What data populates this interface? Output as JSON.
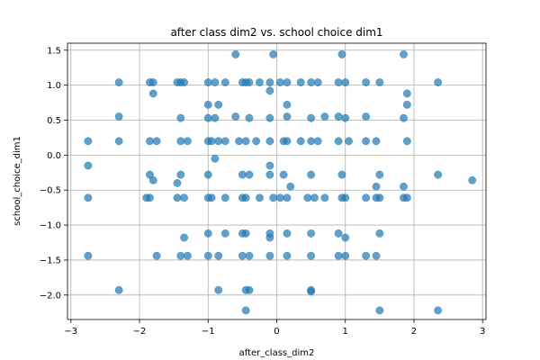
{
  "chart_data": {
    "type": "scatter",
    "title": "after class dim2 vs. school choice dim1",
    "xlabel": "after_class_dim2",
    "ylabel": "school_choice_dim1",
    "xlim": [
      -3.05,
      3.05
    ],
    "ylim": [
      -2.35,
      1.6
    ],
    "xticks": [
      -3,
      -2,
      -1,
      0,
      1,
      2,
      3
    ],
    "yticks": [
      -2.0,
      -1.5,
      -1.0,
      -0.5,
      0.0,
      0.5,
      1.0,
      1.5
    ],
    "xtick_labels": [
      "−3",
      "−2",
      "−1",
      "0",
      "1",
      "2",
      "3"
    ],
    "ytick_labels": [
      "−2.0",
      "−1.5",
      "−1.0",
      "−0.5",
      "0.0",
      "0.5",
      "1.0",
      "1.5"
    ],
    "grid": true,
    "marker_color": "#1f77b4",
    "marker_alpha": 0.7,
    "series": [
      {
        "points": [
          [
            -2.3,
            1.04
          ],
          [
            -1.85,
            1.04
          ],
          [
            -1.8,
            1.04
          ],
          [
            -1.45,
            1.04
          ],
          [
            -1.4,
            1.04
          ],
          [
            -1.35,
            1.04
          ],
          [
            -1.0,
            1.04
          ],
          [
            -0.9,
            1.04
          ],
          [
            -0.75,
            1.04
          ],
          [
            -0.5,
            1.04
          ],
          [
            -0.45,
            1.04
          ],
          [
            -0.4,
            1.04
          ],
          [
            -0.25,
            1.04
          ],
          [
            -0.1,
            1.04
          ],
          [
            0.05,
            1.04
          ],
          [
            0.15,
            1.04
          ],
          [
            0.35,
            1.04
          ],
          [
            0.5,
            1.04
          ],
          [
            0.6,
            1.04
          ],
          [
            0.9,
            1.04
          ],
          [
            1.0,
            1.04
          ],
          [
            1.3,
            1.04
          ],
          [
            1.5,
            1.04
          ],
          [
            2.35,
            1.04
          ],
          [
            -1.8,
            0.88
          ],
          [
            -0.1,
            0.92
          ],
          [
            1.9,
            0.88
          ],
          [
            -1.0,
            0.72
          ],
          [
            -0.85,
            0.72
          ],
          [
            0.15,
            0.72
          ],
          [
            1.9,
            0.72
          ],
          [
            -2.3,
            0.55
          ],
          [
            -1.4,
            0.53
          ],
          [
            -1.0,
            0.53
          ],
          [
            -0.9,
            0.53
          ],
          [
            -0.6,
            0.55
          ],
          [
            -0.4,
            0.53
          ],
          [
            -0.1,
            0.53
          ],
          [
            0.15,
            0.55
          ],
          [
            0.5,
            0.53
          ],
          [
            0.7,
            0.55
          ],
          [
            0.9,
            0.55
          ],
          [
            1.0,
            0.53
          ],
          [
            1.3,
            0.55
          ],
          [
            1.85,
            0.53
          ],
          [
            -2.75,
            0.2
          ],
          [
            -2.3,
            0.2
          ],
          [
            -1.85,
            0.2
          ],
          [
            -1.75,
            0.2
          ],
          [
            -1.4,
            0.2
          ],
          [
            -1.3,
            0.2
          ],
          [
            -1.0,
            0.2
          ],
          [
            -0.95,
            0.2
          ],
          [
            -0.85,
            0.2
          ],
          [
            -0.75,
            0.2
          ],
          [
            -0.55,
            0.2
          ],
          [
            -0.45,
            0.2
          ],
          [
            -0.3,
            0.2
          ],
          [
            -0.1,
            0.2
          ],
          [
            0.1,
            0.2
          ],
          [
            0.15,
            0.2
          ],
          [
            0.35,
            0.2
          ],
          [
            0.5,
            0.2
          ],
          [
            0.6,
            0.2
          ],
          [
            0.9,
            0.2
          ],
          [
            1.05,
            0.2
          ],
          [
            1.3,
            0.2
          ],
          [
            1.45,
            0.2
          ],
          [
            1.9,
            0.2
          ],
          [
            -0.9,
            -0.05
          ],
          [
            -2.75,
            -0.15
          ],
          [
            -0.1,
            -0.15
          ],
          [
            -1.85,
            -0.28
          ],
          [
            -1.4,
            -0.28
          ],
          [
            -1.0,
            -0.28
          ],
          [
            -0.5,
            -0.28
          ],
          [
            -0.4,
            -0.28
          ],
          [
            -0.1,
            -0.28
          ],
          [
            0.1,
            -0.28
          ],
          [
            0.5,
            -0.28
          ],
          [
            0.95,
            -0.28
          ],
          [
            1.5,
            -0.28
          ],
          [
            2.35,
            -0.28
          ],
          [
            -1.8,
            -0.36
          ],
          [
            -1.45,
            -0.4
          ],
          [
            0.2,
            -0.45
          ],
          [
            1.45,
            -0.45
          ],
          [
            1.85,
            -0.45
          ],
          [
            2.85,
            -0.36
          ],
          [
            -2.75,
            -0.61
          ],
          [
            -1.9,
            -0.61
          ],
          [
            -1.85,
            -0.61
          ],
          [
            -1.45,
            -0.61
          ],
          [
            -1.35,
            -0.61
          ],
          [
            -1.0,
            -0.61
          ],
          [
            -0.95,
            -0.61
          ],
          [
            -0.75,
            -0.61
          ],
          [
            -0.5,
            -0.61
          ],
          [
            -0.45,
            -0.61
          ],
          [
            -0.25,
            -0.61
          ],
          [
            -0.05,
            -0.61
          ],
          [
            0.05,
            -0.61
          ],
          [
            0.15,
            -0.61
          ],
          [
            0.45,
            -0.61
          ],
          [
            0.55,
            -0.61
          ],
          [
            0.7,
            -0.61
          ],
          [
            0.95,
            -0.61
          ],
          [
            1.0,
            -0.61
          ],
          [
            1.3,
            -0.61
          ],
          [
            1.45,
            -0.61
          ],
          [
            1.5,
            -0.61
          ],
          [
            1.85,
            -0.61
          ],
          [
            1.9,
            -0.61
          ],
          [
            -1.0,
            -1.12
          ],
          [
            -0.75,
            -1.12
          ],
          [
            -0.5,
            -1.12
          ],
          [
            -0.45,
            -1.12
          ],
          [
            -0.1,
            -1.12
          ],
          [
            0.15,
            -1.12
          ],
          [
            0.5,
            -1.12
          ],
          [
            0.9,
            -1.12
          ],
          [
            1.5,
            -1.12
          ],
          [
            -1.35,
            -1.18
          ],
          [
            -0.1,
            -1.18
          ],
          [
            1.0,
            -1.18
          ],
          [
            -2.75,
            -1.44
          ],
          [
            -1.75,
            -1.44
          ],
          [
            -1.4,
            -1.44
          ],
          [
            -1.3,
            -1.44
          ],
          [
            -1.0,
            -1.44
          ],
          [
            -0.85,
            -1.44
          ],
          [
            -0.5,
            -1.44
          ],
          [
            -0.4,
            -1.44
          ],
          [
            -0.1,
            -1.44
          ],
          [
            0.15,
            -1.44
          ],
          [
            0.5,
            -1.44
          ],
          [
            0.9,
            -1.44
          ],
          [
            1.0,
            -1.44
          ],
          [
            1.3,
            -1.44
          ],
          [
            1.45,
            -1.44
          ],
          [
            -0.85,
            -1.93
          ],
          [
            -2.3,
            -1.93
          ],
          [
            -0.45,
            -1.93
          ],
          [
            -0.4,
            -1.93
          ],
          [
            0.5,
            -1.93
          ],
          [
            0.5,
            -1.95
          ],
          [
            -0.45,
            -2.22
          ],
          [
            1.5,
            -2.22
          ],
          [
            2.35,
            -2.22
          ],
          [
            -0.6,
            1.44
          ],
          [
            -0.05,
            1.44
          ],
          [
            0.95,
            1.44
          ],
          [
            1.85,
            1.44
          ]
        ]
      }
    ]
  }
}
